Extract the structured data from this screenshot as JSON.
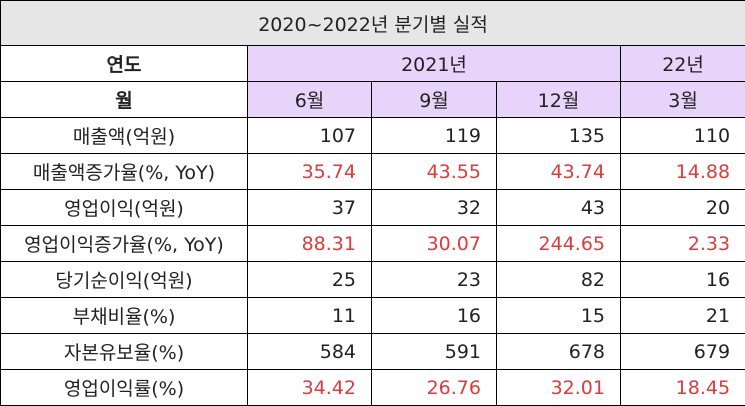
{
  "title": "2020~2022년 분기별 실적",
  "header": {
    "year_label": "연도",
    "month_label": "월",
    "year_2021": "2021년",
    "year_22": "22년",
    "months": [
      "6월",
      "9월",
      "12월",
      "3월"
    ]
  },
  "rows": [
    {
      "label": "매출액(억원)",
      "values": [
        "107",
        "119",
        "135",
        "110"
      ],
      "highlight": false
    },
    {
      "label": "매출액증가율(%, YoY)",
      "values": [
        "35.74",
        "43.55",
        "43.74",
        "14.88"
      ],
      "highlight": true
    },
    {
      "label": "영업이익(억원)",
      "values": [
        "37",
        "32",
        "43",
        "20"
      ],
      "highlight": false
    },
    {
      "label": "영업이익증가율(%, YoY)",
      "values": [
        "88.31",
        "30.07",
        "244.65",
        "2.33"
      ],
      "highlight": true
    },
    {
      "label": "당기순이익(억원)",
      "values": [
        "25",
        "23",
        "82",
        "16"
      ],
      "highlight": false
    },
    {
      "label": "부채비율(%)",
      "values": [
        "11",
        "16",
        "15",
        "21"
      ],
      "highlight": false
    },
    {
      "label": "자본유보율(%)",
      "values": [
        "584",
        "591",
        "678",
        "679"
      ],
      "highlight": false
    },
    {
      "label": "영업이익률(%)",
      "values": [
        "34.42",
        "26.76",
        "32.01",
        "18.45"
      ],
      "highlight": true
    }
  ],
  "colors": {
    "title_bg": "#e7e6e6",
    "header_purple": "#e8d3fb",
    "highlight_text": "#e03a3a"
  }
}
